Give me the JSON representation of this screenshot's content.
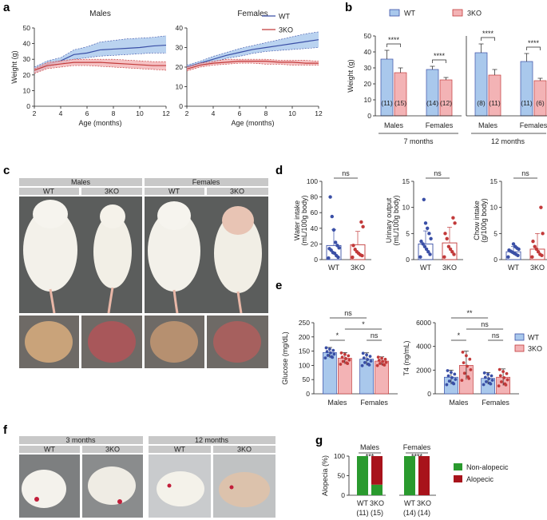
{
  "panel_labels": {
    "a": "a",
    "b": "b",
    "c": "c",
    "d": "d",
    "e": "e",
    "f": "f",
    "g": "g"
  },
  "colors": {
    "wt": "#3a4fa6",
    "wt_fill": "#a9c8ec",
    "ko": "#c23a3a",
    "ko_fill": "#f3b3b5",
    "alopecic": "#a8131b",
    "non_alopecic": "#2a9a2e"
  },
  "chart_data": [
    {
      "id": "a-males",
      "type": "line",
      "title": "Males",
      "xlabel": "Age (months)",
      "ylabel": "Weight (g)",
      "xlim": [
        2,
        12
      ],
      "ylim": [
        0,
        50
      ],
      "xticks": [
        2,
        4,
        6,
        8,
        10,
        12
      ],
      "yticks": [
        0,
        10,
        20,
        30,
        40,
        50
      ],
      "series": [
        {
          "name": "WT",
          "x": [
            2,
            3,
            4,
            5,
            6,
            7,
            8,
            9,
            10,
            11,
            12
          ],
          "y": [
            23,
            27,
            29,
            33,
            34,
            36,
            36.5,
            37,
            37.5,
            38.5,
            39
          ],
          "upper": [
            25,
            29,
            31,
            36,
            38,
            41,
            42,
            43,
            43.5,
            44,
            45
          ],
          "lower": [
            21,
            25,
            27,
            30,
            31,
            32,
            32.5,
            33,
            33.5,
            34,
            34
          ]
        },
        {
          "name": "3KO",
          "x": [
            2,
            3,
            4,
            5,
            6,
            7,
            8,
            9,
            10,
            11,
            12
          ],
          "y": [
            23,
            26,
            27,
            28,
            28,
            28,
            27.5,
            27,
            26.5,
            26,
            26
          ],
          "upper": [
            24,
            28,
            29,
            30,
            30,
            30,
            30,
            29.5,
            29,
            28.5,
            28.5
          ],
          "lower": [
            21,
            24,
            25,
            26,
            26,
            25.5,
            25,
            24.5,
            24,
            23.5,
            23
          ]
        }
      ]
    },
    {
      "id": "a-females",
      "type": "line",
      "title": "Females",
      "xlabel": "Age (months)",
      "ylabel": "",
      "xlim": [
        2,
        12
      ],
      "ylim": [
        0,
        40
      ],
      "xticks": [
        2,
        4,
        6,
        8,
        10,
        12
      ],
      "yticks": [
        0,
        10,
        20,
        30,
        40
      ],
      "series": [
        {
          "name": "WT",
          "x": [
            2,
            3,
            4,
            5,
            6,
            7,
            8,
            9,
            10,
            11,
            12
          ],
          "y": [
            20,
            22,
            24,
            26,
            27.5,
            29,
            30,
            31,
            32,
            33,
            34
          ],
          "upper": [
            21,
            23,
            25.5,
            27.5,
            29.5,
            31,
            32.5,
            34,
            35.5,
            37,
            38
          ],
          "lower": [
            19,
            21,
            22.5,
            24.5,
            25.5,
            27,
            28,
            28.5,
            29,
            29.5,
            30
          ]
        },
        {
          "name": "3KO",
          "x": [
            2,
            3,
            4,
            5,
            6,
            7,
            8,
            9,
            10,
            11,
            12
          ],
          "y": [
            19,
            21,
            22,
            22.5,
            23,
            23,
            23,
            22.5,
            22.5,
            22,
            22
          ],
          "upper": [
            20,
            22,
            23,
            24,
            24,
            24,
            24,
            23.5,
            23.5,
            23.5,
            23
          ],
          "lower": [
            18,
            20,
            21,
            21.5,
            22,
            22,
            21.5,
            21.5,
            21,
            21,
            21
          ]
        }
      ]
    },
    {
      "id": "b",
      "type": "bar",
      "ylabel": "Weight (g)",
      "ylim": [
        0,
        50
      ],
      "yticks": [
        0,
        10,
        20,
        30,
        40,
        50
      ],
      "legend": [
        "WT",
        "3KO"
      ],
      "groups": [
        {
          "label": "Males",
          "wt": 35.5,
          "wt_err": 5.5,
          "ko": 27,
          "ko_err": 3,
          "wt_n": "(11)",
          "ko_n": "(15)",
          "sig": "****"
        },
        {
          "label": "Females",
          "wt": 29,
          "wt_err": 2,
          "ko": 22.5,
          "ko_err": 1.5,
          "wt_n": "(14)",
          "ko_n": "(12)",
          "sig": "****"
        },
        {
          "label": "Males",
          "wt": 39.5,
          "wt_err": 5.5,
          "ko": 25.5,
          "ko_err": 3.5,
          "wt_n": "(8)",
          "ko_n": "(11)",
          "sig": "****"
        },
        {
          "label": "Females",
          "wt": 34,
          "wt_err": 5,
          "ko": 22,
          "ko_err": 1.5,
          "wt_n": "(11)",
          "ko_n": "(6)",
          "sig": "****"
        }
      ],
      "age_labels": [
        "7 months",
        "12 months"
      ]
    },
    {
      "id": "d-water",
      "type": "scatter",
      "ylabel": "Water intake (mL/100g body)",
      "ylim": [
        0,
        100
      ],
      "yticks": [
        0,
        20,
        40,
        60,
        80,
        100
      ],
      "categories": [
        "WT",
        "3KO"
      ],
      "means": [
        18,
        19
      ],
      "sds": [
        20,
        17
      ],
      "sig": "ns",
      "points": [
        [
          2,
          3,
          5,
          8,
          9,
          12,
          14,
          15,
          18,
          22,
          38,
          55,
          80
        ],
        [
          3,
          5,
          6,
          8,
          10,
          13,
          18,
          42,
          48
        ]
      ]
    },
    {
      "id": "d-urine",
      "type": "scatter",
      "ylabel": "Urinary output (mL/100g body)",
      "ylim": [
        0,
        15
      ],
      "yticks": [
        0,
        5,
        10,
        15
      ],
      "categories": [
        "WT",
        "3KO"
      ],
      "means": [
        3,
        3.2
      ],
      "sds": [
        2.5,
        3
      ],
      "sig": "ns",
      "points": [
        [
          0.5,
          1,
          1.5,
          2,
          2.5,
          3,
          3.5,
          4,
          5,
          6,
          7,
          11.5
        ],
        [
          0.5,
          1,
          1.5,
          2,
          2.5,
          4,
          5,
          7,
          8
        ]
      ]
    },
    {
      "id": "d-chow",
      "type": "scatter",
      "ylabel": "Chow intake (g/100g body)",
      "ylim": [
        0,
        15
      ],
      "yticks": [
        0,
        5,
        10,
        15
      ],
      "categories": [
        "WT",
        "3KO"
      ],
      "means": [
        1.5,
        2
      ],
      "sds": [
        1,
        3
      ],
      "sig": "ns",
      "points": [
        [
          0.5,
          0.8,
          1,
          1.2,
          1.4,
          1.6,
          1.8,
          2,
          2.2,
          2.5,
          3
        ],
        [
          0.5,
          0.8,
          1,
          1.5,
          2,
          2.5,
          3.5,
          5,
          10
        ]
      ]
    },
    {
      "id": "e-glucose",
      "type": "bar",
      "ylabel": "Glucose (mg/dL)",
      "ylim": [
        0,
        250
      ],
      "yticks": [
        0,
        50,
        100,
        150,
        200,
        250
      ],
      "categories": [
        "Males",
        "Females"
      ],
      "wt": [
        145,
        122
      ],
      "wt_err": [
        18,
        22
      ],
      "ko": [
        125,
        115
      ],
      "ko_err": [
        20,
        15
      ],
      "sig_within": [
        "*",
        "ns"
      ],
      "sig_cross": [
        "*",
        "ns"
      ]
    },
    {
      "id": "e-t4",
      "type": "bar",
      "ylabel": "T4 (ng/mL)",
      "ylim": [
        0,
        6000
      ],
      "yticks": [
        0,
        2000,
        4000,
        6000
      ],
      "categories": [
        "Males",
        "Females"
      ],
      "wt": [
        1400,
        1300
      ],
      "wt_err": [
        600,
        500
      ],
      "ko": [
        2400,
        1400
      ],
      "ko_err": [
        1200,
        700
      ],
      "sig_within": [
        "*",
        "ns"
      ],
      "sig_cross": [
        "ns",
        "**"
      ],
      "legend": [
        "WT",
        "3KO"
      ]
    },
    {
      "id": "g",
      "type": "bar",
      "ylabel": "Alopecia (%)",
      "ylim": [
        0,
        100
      ],
      "yticks": [
        0,
        50,
        100
      ],
      "groups": [
        {
          "title": "Males",
          "sig": "***",
          "bars": [
            {
              "label": "WT",
              "n": "(11)",
              "alopecic": 0
            },
            {
              "label": "3KO",
              "n": "(15)",
              "alopecic": 73
            }
          ]
        },
        {
          "title": "Females",
          "sig": "****",
          "bars": [
            {
              "label": "WT",
              "n": "(14)",
              "alopecic": 0
            },
            {
              "label": "3KO",
              "n": "(14)",
              "alopecic": 100
            }
          ]
        }
      ],
      "legend": [
        "Non-alopecic",
        "Alopecic"
      ]
    }
  ],
  "photo_c": {
    "headers": [
      "Males",
      "Females"
    ],
    "subheaders": [
      "WT",
      "3KO",
      "WT",
      "3KO"
    ]
  },
  "photo_f": {
    "headers": [
      "3 months",
      "12 months"
    ],
    "subheaders": [
      "WT",
      "3KO",
      "WT",
      "3KO"
    ]
  }
}
